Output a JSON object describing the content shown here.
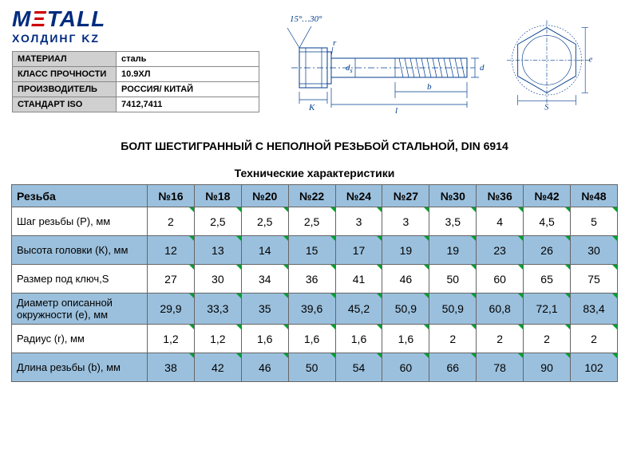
{
  "logo": {
    "main1": "M",
    "main2": "Ξ",
    "main3": "TALL",
    "sub": "ХОЛДИНГ KZ"
  },
  "specs": [
    {
      "label": "МАТЕРИАЛ",
      "value": "сталь"
    },
    {
      "label": "КЛАСС ПРОЧНОСТИ",
      "value": "10.9ХЛ"
    },
    {
      "label": "ПРОИЗВОДИТЕЛЬ",
      "value": "РОССИЯ/ КИТАЙ"
    },
    {
      "label": "СТАНДАРТ ISO",
      "value": "7412,7411"
    }
  ],
  "diagram": {
    "angle_label": "15°…30°",
    "r": "r",
    "ds": "d",
    "ds_sub": "s",
    "d": "d",
    "K": "K",
    "b": "b",
    "l": "l",
    "e": "e",
    "S": "S"
  },
  "title": "БОЛТ ШЕСТИГРАННЫЙ С НЕПОЛНОЙ РЕЗЬБОЙ СТАЛЬНОЙ, DIN 6914",
  "table": {
    "caption": "Технические характеристики",
    "rowhead": "Резьба",
    "columns": [
      "№16",
      "№18",
      "№20",
      "№22",
      "№24",
      "№27",
      "№30",
      "№36",
      "№42",
      "№48"
    ],
    "rows": [
      {
        "label": "Шаг резьбы (P), мм",
        "vals": [
          "2",
          "2,5",
          "2,5",
          "2,5",
          "3",
          "3",
          "3,5",
          "4",
          "4,5",
          "5"
        ],
        "bg": "white"
      },
      {
        "label": "Высота головки (К), мм",
        "vals": [
          "12",
          "13",
          "14",
          "15",
          "17",
          "19",
          "19",
          "23",
          "26",
          "30"
        ],
        "bg": "blue"
      },
      {
        "label": "Размер под ключ,S",
        "vals": [
          "27",
          "30",
          "34",
          "36",
          "41",
          "46",
          "50",
          "60",
          "65",
          "75"
        ],
        "bg": "white"
      },
      {
        "label": "Диаметр описанной окружности (e), мм",
        "vals": [
          "29,9",
          "33,3",
          "35",
          "39,6",
          "45,2",
          "50,9",
          "50,9",
          "60,8",
          "72,1",
          "83,4"
        ],
        "bg": "blue"
      },
      {
        "label": "Радиус (r), мм",
        "vals": [
          "1,2",
          "1,2",
          "1,6",
          "1,6",
          "1,6",
          "1,6",
          "2",
          "2",
          "2",
          "2"
        ],
        "bg": "white"
      },
      {
        "label": "Длина резьбы (b), мм",
        "vals": [
          "38",
          "42",
          "46",
          "50",
          "54",
          "60",
          "66",
          "78",
          "90",
          "102"
        ],
        "bg": "blue"
      }
    ],
    "colors": {
      "header_bg": "#9bc0dd",
      "row_blue": "#9bc0dd",
      "row_white": "#ffffff",
      "border": "#666666",
      "marker": "#00a030"
    }
  }
}
